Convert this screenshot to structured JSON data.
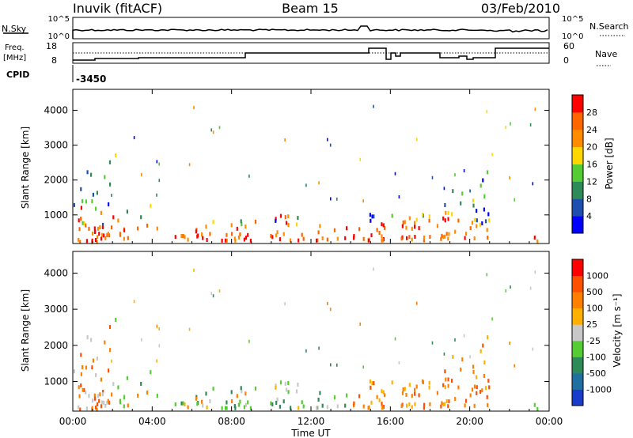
{
  "header": {
    "station": "Inuvik  (fitACF)",
    "beam": "Beam 15",
    "date": "03/Feb/2010"
  },
  "status_panels": {
    "nsky_label": "N.Sky",
    "nsky_ticks": [
      "10^5",
      "10^0"
    ],
    "nsearch_label": "N.Search",
    "nsearch_ticks": [
      "10^5",
      "10^0"
    ],
    "freq_label": "Freq.",
    "freq_unit": "[MHz]",
    "freq_ticks": [
      "18",
      "8"
    ],
    "nave_label": "Nave",
    "nave_ticks": [
      "60",
      "0"
    ],
    "cpid_label": "CPID",
    "cpid_value": "-3450"
  },
  "chart_data": [
    {
      "type": "heatmap",
      "name": "power",
      "ylabel": "Slant Range [km]",
      "xlabel": "Time UT",
      "x_ticks": [
        "00:00",
        "04:00",
        "08:00",
        "12:00",
        "16:00",
        "20:00",
        "00:00"
      ],
      "y_ticks": [
        "1000",
        "2000",
        "3000",
        "4000"
      ],
      "colorbar_label": "Power [dB]",
      "colorbar_ticks": [
        "4",
        "8",
        "12",
        "16",
        "20",
        "24",
        "28"
      ],
      "colors": [
        "#0000ff",
        "#1e4fb0",
        "#2e8b57",
        "#55cc33",
        "#ffd700",
        "#ff8c00",
        "#ff6600",
        "#ff0000"
      ]
    },
    {
      "type": "heatmap",
      "name": "velocity",
      "ylabel": "Slant Range [km]",
      "xlabel": "Time UT",
      "x_ticks": [
        "00:00",
        "04:00",
        "08:00",
        "12:00",
        "16:00",
        "20:00",
        "00:00"
      ],
      "y_ticks": [
        "1000",
        "2000",
        "3000",
        "4000"
      ],
      "colorbar_label": "Velocity  [m s⁻¹]",
      "colorbar_ticks": [
        "1000",
        "500",
        "100",
        "25",
        "-25",
        "-100",
        "-500",
        "-1000"
      ],
      "colors": [
        "#1a3ccc",
        "#1f6fa0",
        "#2e8b57",
        "#55cc33",
        "#c8c8c8",
        "#ffb000",
        "#ff8000",
        "#ff5000",
        "#ff0000"
      ]
    }
  ]
}
